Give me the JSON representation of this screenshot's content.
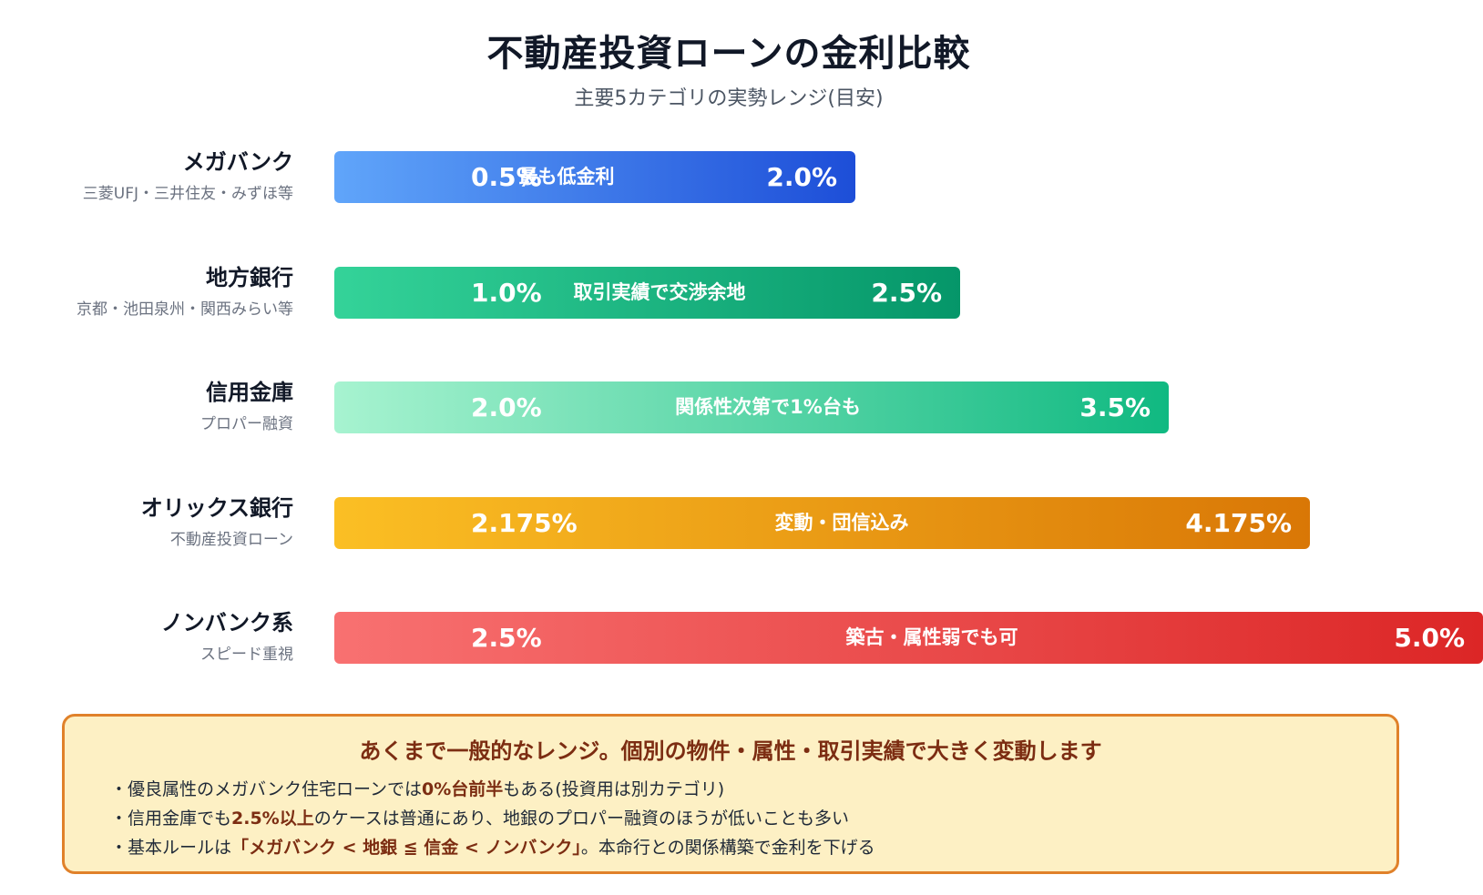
{
  "title": "不動産投資ローンの金利比較",
  "subtitle": "主要5カテゴリの実勢レンジ(目安)",
  "chart_data": {
    "type": "bar",
    "orientation": "horizontal-range",
    "title": "不動産投資ローンの金利比較",
    "subtitle": "主要5カテゴリの実勢レンジ(目安)",
    "categories": [
      {
        "name": "メガバンク",
        "sub": "三菱UFJ・三井住友・みずほ等",
        "low": 0.5,
        "high": 2.0,
        "low_label": "0.5%",
        "high_label": "2.0%",
        "note": "最も低金利",
        "colors": [
          "#60a5fa",
          "#1d4ed8"
        ]
      },
      {
        "name": "地方銀行",
        "sub": "京都・池田泉州・関西みらい等",
        "low": 1.0,
        "high": 2.5,
        "low_label": "1.0%",
        "high_label": "2.5%",
        "note": "取引実績で交渉余地",
        "colors": [
          "#34d399",
          "#059669"
        ]
      },
      {
        "name": "信用金庫",
        "sub": "プロパー融資",
        "low": 2.0,
        "high": 3.5,
        "low_label": "2.0%",
        "high_label": "3.5%",
        "note": "関係性次第で1%台も",
        "colors": [
          "#a7f3d0",
          "#10b981"
        ]
      },
      {
        "name": "オリックス銀行",
        "sub": "不動産投資ローン",
        "low": 2.175,
        "high": 4.175,
        "low_label": "2.175%",
        "high_label": "4.175%",
        "note": "変動・団信込み",
        "colors": [
          "#fbbf24",
          "#d97706"
        ]
      },
      {
        "name": "ノンバンク系",
        "sub": "スピード重視",
        "low": 2.5,
        "high": 5.0,
        "low_label": "2.5%",
        "high_label": "5.0%",
        "note": "築古・属性弱でも可",
        "colors": [
          "#f87171",
          "#dc2626"
        ]
      }
    ]
  },
  "callout": {
    "heading": "あくまで一般的なレンジ。個別の物件・属性・取引実績で大きく変動します",
    "bullets": [
      {
        "prefix": "・優良属性のメガバンク住宅ローンでは",
        "bold": "0%台前半",
        "suffix": "もある(投資用は別カテゴリ)"
      },
      {
        "prefix": "・信用金庫でも",
        "bold": "2.5%以上",
        "suffix": "のケースは普通にあり、地銀のプロパー融資のほうが低いことも多い"
      },
      {
        "prefix": "・基本ルールは",
        "bold": "「メガバンク < 地銀 ≦ 信金 < ノンバンク」",
        "suffix": "。本命行との関係構築で金利を下げる"
      }
    ]
  }
}
